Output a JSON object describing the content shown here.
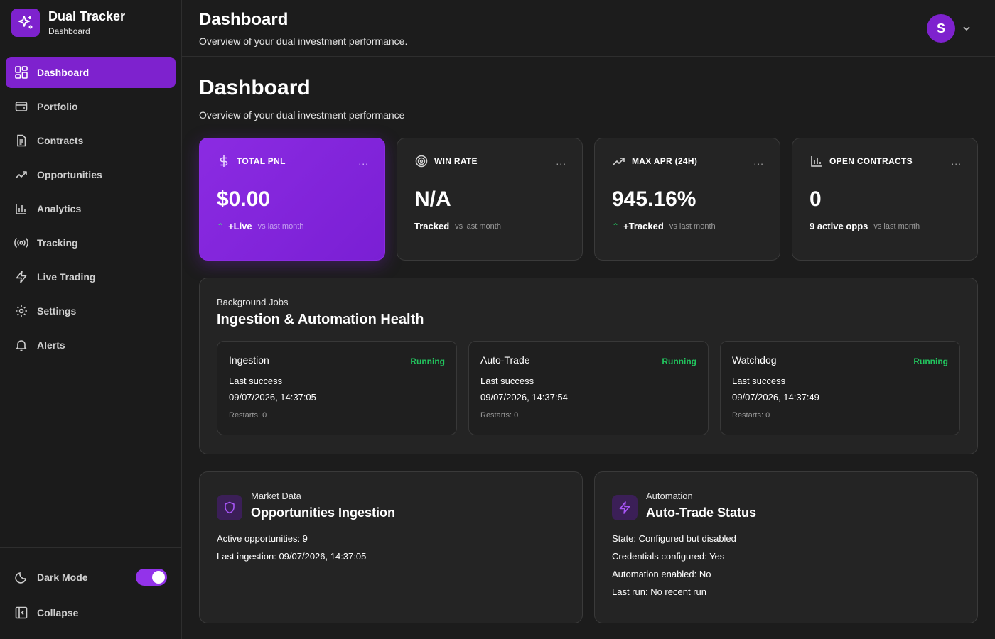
{
  "brand": {
    "title": "Dual Tracker",
    "subtitle": "Dashboard"
  },
  "sidebar": {
    "items": [
      {
        "label": "Dashboard",
        "icon": "grid-icon"
      },
      {
        "label": "Portfolio",
        "icon": "wallet-icon"
      },
      {
        "label": "Contracts",
        "icon": "document-icon"
      },
      {
        "label": "Opportunities",
        "icon": "trending-up-icon"
      },
      {
        "label": "Analytics",
        "icon": "bar-chart-icon"
      },
      {
        "label": "Tracking",
        "icon": "radio-icon"
      },
      {
        "label": "Live Trading",
        "icon": "lightning-icon"
      },
      {
        "label": "Settings",
        "icon": "gear-icon"
      },
      {
        "label": "Alerts",
        "icon": "bell-icon"
      }
    ],
    "active": "Dashboard",
    "dark_mode_label": "Dark Mode",
    "dark_mode_on": true,
    "collapse_label": "Collapse"
  },
  "header": {
    "title": "Dashboard",
    "subtitle": "Overview of your dual investment performance.",
    "avatar_initial": "S"
  },
  "page": {
    "title": "Dashboard",
    "subtitle": "Overview of your dual investment performance"
  },
  "stats": [
    {
      "label": "TOTAL PNL",
      "value": "$0.00",
      "trend": "⌃",
      "tag": "+Live",
      "vs": "vs last month",
      "icon": "dollar-icon"
    },
    {
      "label": "WIN RATE",
      "value": "N/A",
      "trend": "",
      "tag": "Tracked",
      "vs": "vs last month",
      "icon": "target-icon"
    },
    {
      "label": "MAX APR (24H)",
      "value": "945.16%",
      "trend": "⌃",
      "tag": "+Tracked",
      "vs": "vs last month",
      "icon": "trending-up-icon"
    },
    {
      "label": "OPEN CONTRACTS",
      "value": "0",
      "trend": "",
      "tag": "9 active opps",
      "vs": "vs last month",
      "icon": "bar-chart-icon"
    }
  ],
  "stat_more": "...",
  "jobs": {
    "eyebrow": "Background Jobs",
    "title": "Ingestion & Automation Health",
    "items": [
      {
        "name": "Ingestion",
        "status": "Running",
        "label": "Last success",
        "time": "09/07/2026, 14:37:05",
        "restarts": "Restarts: 0"
      },
      {
        "name": "Auto-Trade",
        "status": "Running",
        "label": "Last success",
        "time": "09/07/2026, 14:37:54",
        "restarts": "Restarts: 0"
      },
      {
        "name": "Watchdog",
        "status": "Running",
        "label": "Last success",
        "time": "09/07/2026, 14:37:49",
        "restarts": "Restarts: 0"
      }
    ]
  },
  "market": {
    "eyebrow": "Market Data",
    "title": "Opportunities Ingestion",
    "lines": [
      "Active opportunities: 9",
      "Last ingestion: 09/07/2026, 14:37:05"
    ]
  },
  "automation": {
    "eyebrow": "Automation",
    "title": "Auto-Trade Status",
    "lines": [
      "State: Configured but disabled",
      "Credentials configured: Yes",
      "Automation enabled: No",
      "Last run: No recent run"
    ]
  },
  "colors": {
    "accent": "#7e22ce",
    "success": "#22c55e",
    "background": "#1c1c1c",
    "card": "#242424"
  }
}
